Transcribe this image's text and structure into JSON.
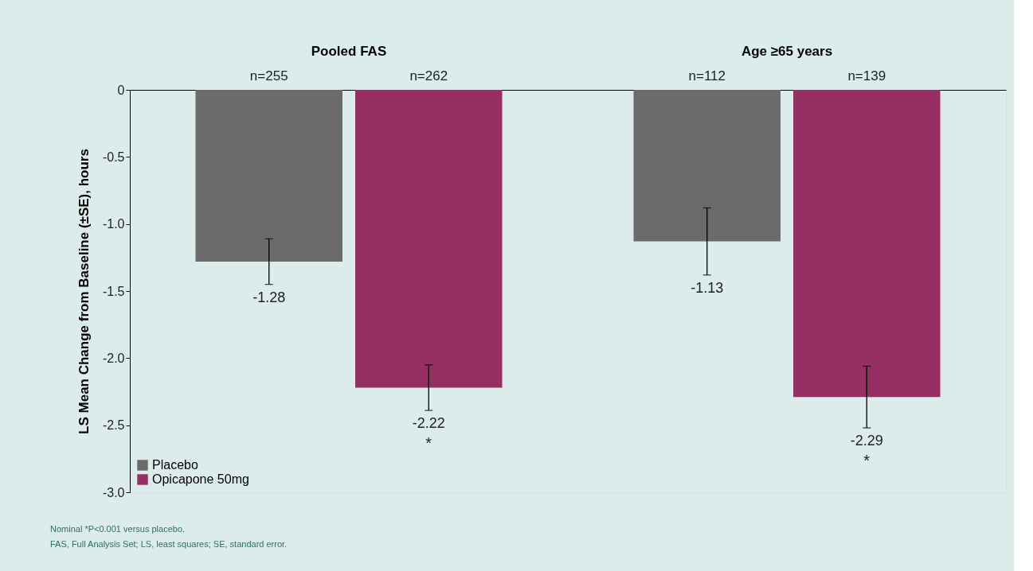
{
  "chart_data": {
    "type": "bar",
    "ylabel": "LS Mean Change from Baseline (±SE), hours",
    "categories": [
      "Pooled FAS",
      "Age ≥65 years"
    ],
    "series": [
      {
        "name": "Placebo",
        "color": "#6b6b6b",
        "values": [
          -1.28,
          -1.13
        ],
        "errors": [
          0.17,
          0.25
        ]
      },
      {
        "name": "Opicapone 50mg",
        "color": "#952f64",
        "values": [
          -2.22,
          -2.29
        ],
        "errors": [
          0.17,
          0.23
        ]
      }
    ],
    "ylim": [
      -3.0,
      0
    ],
    "yticks": [
      0,
      -0.5,
      {
        "value": -1.0,
        "label": "-1.0"
      },
      -1.5,
      {
        "value": -2.0,
        "label": "-2.0"
      },
      -2.5,
      {
        "value": -3.0,
        "label": "-3.0"
      }
    ],
    "data_labels": true,
    "grid": false,
    "legend": "bottom left",
    "annotations": [
      "n=255",
      "n=262",
      "n=112",
      "n=139",
      "*",
      "*",
      "Nominal *P<0.001 versus placebo.",
      "FAS, Full Analysis Set; LS, least squares; SE, standard error."
    ]
  }
}
